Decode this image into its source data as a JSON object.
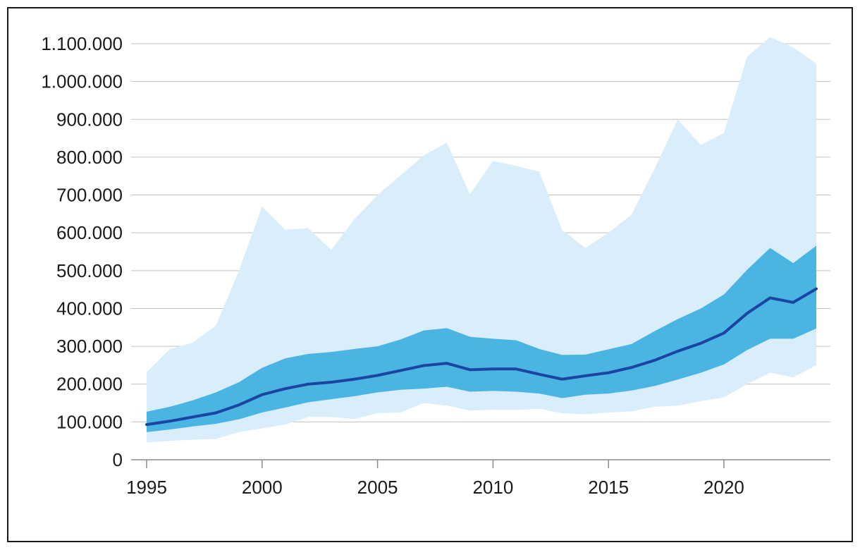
{
  "chart_data": {
    "type": "area",
    "title": "",
    "xlabel": "",
    "ylabel": "",
    "xlim": [
      1995,
      2024
    ],
    "ylim": [
      0,
      1100000
    ],
    "grid": true,
    "x_ticks": [
      1995,
      2000,
      2005,
      2010,
      2015,
      2020
    ],
    "x_tick_labels": [
      "1995",
      "2000",
      "2005",
      "2010",
      "2015",
      "2020"
    ],
    "y_ticks": [
      0,
      100000,
      200000,
      300000,
      400000,
      500000,
      600000,
      700000,
      800000,
      900000,
      1000000,
      1100000
    ],
    "y_tick_labels": [
      "0",
      "100.000",
      "200.000",
      "300.000",
      "400.000",
      "500.000",
      "600.000",
      "700.000",
      "800.000",
      "900.000",
      "1.000.000",
      "1.100.000"
    ],
    "x": [
      1995,
      1996,
      1997,
      1998,
      1999,
      2000,
      2001,
      2002,
      2003,
      2004,
      2005,
      2006,
      2007,
      2008,
      2009,
      2010,
      2011,
      2012,
      2013,
      2014,
      2015,
      2016,
      2017,
      2018,
      2019,
      2020,
      2021,
      2022,
      2023,
      2024
    ],
    "outer_band": {
      "color": "#d9eefa",
      "upper": [
        232000,
        292000,
        310000,
        355000,
        500000,
        670000,
        608000,
        612000,
        555000,
        636000,
        700000,
        752000,
        805000,
        838000,
        702000,
        790000,
        777000,
        762000,
        607000,
        560000,
        600000,
        648000,
        770000,
        900000,
        832000,
        864000,
        1065000,
        1118000,
        1090000,
        1048000
      ],
      "lower": [
        45000,
        50000,
        53000,
        55000,
        73000,
        83000,
        93000,
        113000,
        113000,
        108000,
        123000,
        125000,
        150000,
        143000,
        130000,
        132000,
        132000,
        135000,
        123000,
        120000,
        125000,
        128000,
        140000,
        143000,
        155000,
        165000,
        200000,
        230000,
        218000,
        250000
      ]
    },
    "inner_band": {
      "color": "#4ab4e3",
      "upper": [
        127000,
        140000,
        157000,
        178000,
        205000,
        243000,
        268000,
        280000,
        285000,
        293000,
        300000,
        318000,
        342000,
        348000,
        325000,
        320000,
        316000,
        293000,
        277000,
        278000,
        292000,
        306000,
        340000,
        372000,
        400000,
        437000,
        502000,
        560000,
        520000,
        566000
      ],
      "lower": [
        73000,
        80000,
        88000,
        95000,
        107000,
        125000,
        138000,
        152000,
        160000,
        168000,
        178000,
        185000,
        188000,
        193000,
        180000,
        182000,
        180000,
        175000,
        163000,
        172000,
        175000,
        183000,
        195000,
        212000,
        230000,
        252000,
        290000,
        320000,
        320000,
        347000
      ]
    },
    "series": [
      {
        "color": "#1a45a0",
        "values": [
          93000,
          102000,
          113000,
          124000,
          145000,
          172000,
          188000,
          200000,
          205000,
          213000,
          223000,
          236000,
          249000,
          255000,
          238000,
          240000,
          240000,
          226000,
          213000,
          222000,
          230000,
          244000,
          263000,
          287000,
          308000,
          335000,
          387000,
          428000,
          416000,
          452000
        ]
      }
    ],
    "grid_color": "#c0c0c0",
    "axis_color": "#8a8a8a"
  }
}
